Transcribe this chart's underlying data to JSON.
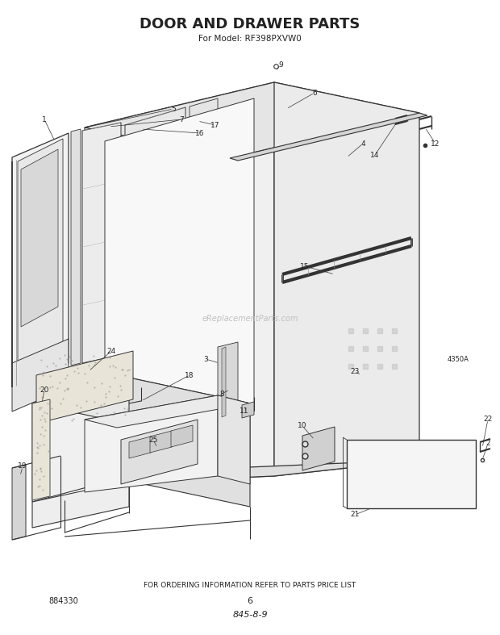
{
  "title": "DOOR AND DRAWER PARTS",
  "subtitle": "For Model: RF398PXVW0",
  "footer_text": "FOR ORDERING INFORMATION REFER TO PARTS PRICE LIST",
  "page_number": "6",
  "part_number_bottom_left": "884330",
  "diagram_code": "845-8-9",
  "watermark": "eReplacementParts.com",
  "figure_code": "4350A",
  "bg_color": "#ffffff",
  "line_color": "#333333",
  "text_color": "#222222"
}
